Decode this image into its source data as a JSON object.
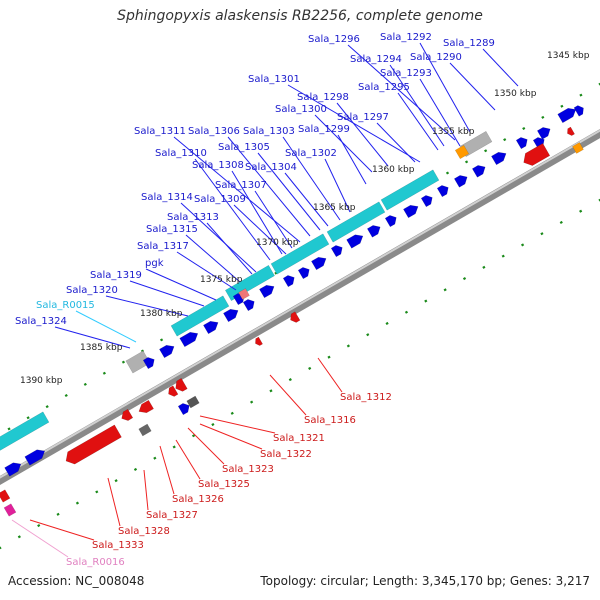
{
  "title": "Sphingopyxis alaskensis RB2256, complete genome",
  "accession": "Accession: NC_008048",
  "summary": "Topology: circular; Length: 3,345,170 bp; Genes: 3,217",
  "colors": {
    "backbone": "#a0a0a0",
    "forward_gene": "#0000e0",
    "reverse_gene": "#e01010",
    "cds_cyan": "#20c8d0",
    "orange": "#ff9900",
    "grey": "#b0b0b0",
    "pink": "#e0209a",
    "tick_green": "#1a8a1a",
    "label_blue": "#1a1acc",
    "label_red": "#cc1a1a",
    "label_cyan": "#22b8e0",
    "label_pink": "#e080c0"
  },
  "kbp_ticks": [
    "1345 kbp",
    "1350 kbp",
    "1355 kbp",
    "1360 kbp",
    "1365 kbp",
    "1370 kbp",
    "1375 kbp",
    "1380 kbp",
    "1385 kbp",
    "1390 kbp"
  ],
  "upper_labels": [
    "Sala_1296",
    "Sala_1292",
    "Sala_1289",
    "Sala_1294",
    "Sala_1290",
    "Sala_1293",
    "Sala_1301",
    "Sala_1295",
    "Sala_1298",
    "Sala_1300",
    "Sala_1297",
    "Sala_1299",
    "Sala_1311",
    "Sala_1306",
    "Sala_1303",
    "Sala_1305",
    "Sala_1302",
    "Sala_1310",
    "Sala_1308",
    "Sala_1304",
    "Sala_1307",
    "Sala_1314",
    "Sala_1309",
    "Sala_1313",
    "Sala_1315",
    "Sala_1317",
    "pgk",
    "Sala_1319",
    "Sala_1320",
    "Sala_R0015",
    "Sala_1324"
  ],
  "lower_labels": [
    "Sala_1312",
    "Sala_1316",
    "Sala_1321",
    "Sala_1322",
    "Sala_1323",
    "Sala_1325",
    "Sala_1326",
    "Sala_1327",
    "Sala_1328",
    "Sala_1333",
    "Sala_R0016"
  ]
}
